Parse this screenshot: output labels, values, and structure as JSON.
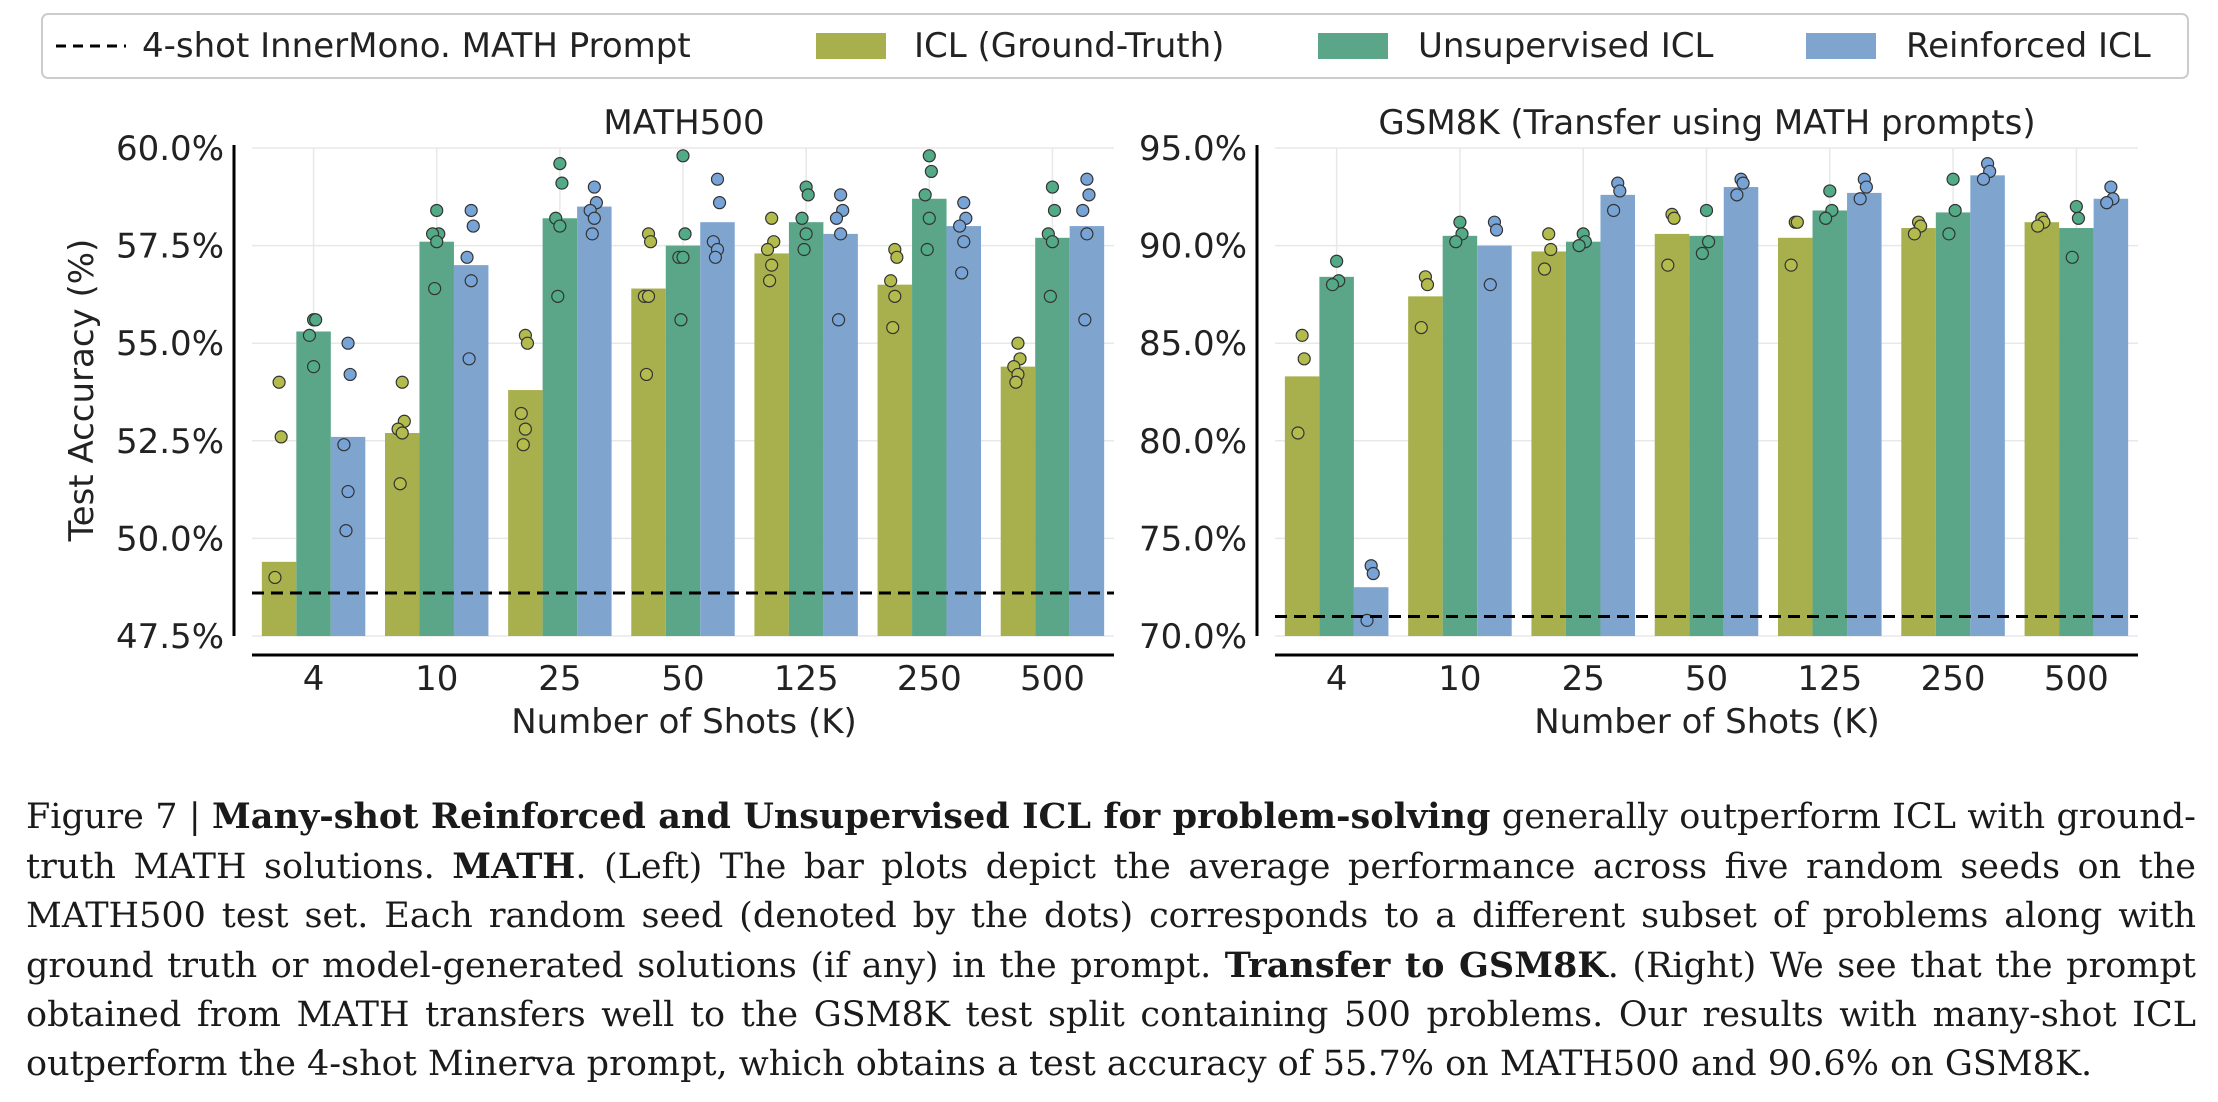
{
  "legend": {
    "items": [
      {
        "label": "4-shot InnerMono. MATH Prompt",
        "kind": "dashed",
        "color": "#000000"
      },
      {
        "label": "ICL (Ground-Truth)",
        "kind": "patch",
        "color": "#a8b04e"
      },
      {
        "label": "Unsupervised ICL",
        "kind": "patch",
        "color": "#5ba689"
      },
      {
        "label": "Reinforced ICL",
        "kind": "patch",
        "color": "#7fa5cf"
      }
    ]
  },
  "colors": {
    "icl": "#a8b04e",
    "icl_dot": "#b2bb4c",
    "unsup": "#5ba689",
    "unsup_dot": "#52aa86",
    "reinf": "#7fa5cf",
    "reinf_dot": "#78a3d6",
    "baseline": "#000000",
    "axis": "#000000",
    "grid": "#e8e8e8"
  },
  "chart_data": [
    {
      "type": "bar",
      "title": "MATH500",
      "xlabel": "Number of Shots (K)",
      "ylabel": "Test Accuracy (%)",
      "categories": [
        "4",
        "10",
        "25",
        "50",
        "125",
        "250",
        "500"
      ],
      "ylim": [
        47.5,
        60.0
      ],
      "yticks": [
        "47.5%",
        "50.0%",
        "52.5%",
        "55.0%",
        "57.5%",
        "60.0%"
      ],
      "ytick_values": [
        47.5,
        50.0,
        52.5,
        55.0,
        57.5,
        60.0
      ],
      "grid": true,
      "baseline": 48.6,
      "series": [
        {
          "name": "ICL (Ground-Truth)",
          "values": [
            49.4,
            52.7,
            53.8,
            56.4,
            57.3,
            56.5,
            54.4
          ],
          "seeds": [
            [
              54.0,
              52.6,
              49.0
            ],
            [
              54.0,
              53.0,
              52.8,
              52.7,
              51.4
            ],
            [
              55.2,
              55.0,
              53.2,
              52.8,
              52.4
            ],
            [
              57.8,
              57.6,
              56.2,
              56.2,
              54.2
            ],
            [
              58.2,
              57.6,
              57.4,
              57.0,
              56.6
            ],
            [
              57.4,
              57.2,
              56.6,
              56.2,
              55.4
            ],
            [
              55.0,
              54.6,
              54.4,
              54.2,
              54.0
            ]
          ]
        },
        {
          "name": "Unsupervised ICL",
          "values": [
            55.3,
            57.6,
            58.2,
            57.5,
            58.1,
            58.7,
            57.7
          ],
          "seeds": [
            [
              55.6,
              55.6,
              55.2,
              54.4
            ],
            [
              58.4,
              57.8,
              57.8,
              57.6,
              56.4
            ],
            [
              59.6,
              59.1,
              58.2,
              58.0,
              56.2
            ],
            [
              59.8,
              57.8,
              57.2,
              57.2,
              55.6
            ],
            [
              59.0,
              58.8,
              58.2,
              57.8,
              57.4
            ],
            [
              59.8,
              59.4,
              58.8,
              58.2,
              57.4
            ],
            [
              59.0,
              58.4,
              57.8,
              57.6,
              56.2
            ]
          ]
        },
        {
          "name": "Reinforced ICL",
          "values": [
            52.6,
            57.0,
            58.5,
            58.1,
            57.8,
            58.0,
            58.0
          ],
          "seeds": [
            [
              55.0,
              54.2,
              52.4,
              51.2,
              50.2
            ],
            [
              58.4,
              58.0,
              57.2,
              56.6,
              54.6
            ],
            [
              59.0,
              58.6,
              58.4,
              58.2,
              57.8
            ],
            [
              59.2,
              58.6,
              57.6,
              57.4,
              57.2
            ],
            [
              58.8,
              58.4,
              58.2,
              57.8,
              55.6
            ],
            [
              58.6,
              58.2,
              58.0,
              57.6,
              56.8
            ],
            [
              59.2,
              58.8,
              58.4,
              57.8,
              55.6
            ]
          ]
        }
      ]
    },
    {
      "type": "bar",
      "title": "GSM8K (Transfer using MATH prompts)",
      "xlabel": "Number of Shots (K)",
      "ylabel": "",
      "categories": [
        "4",
        "10",
        "25",
        "50",
        "125",
        "250",
        "500"
      ],
      "ylim": [
        70.0,
        95.0
      ],
      "yticks": [
        "70.0%",
        "75.0%",
        "80.0%",
        "85.0%",
        "90.0%",
        "95.0%"
      ],
      "ytick_values": [
        70.0,
        75.0,
        80.0,
        85.0,
        90.0,
        95.0
      ],
      "grid": true,
      "baseline": 71.0,
      "series": [
        {
          "name": "ICL (Ground-Truth)",
          "values": [
            83.3,
            87.4,
            89.7,
            90.6,
            90.4,
            90.9,
            91.2
          ],
          "seeds": [
            [
              85.4,
              84.2,
              80.4
            ],
            [
              88.4,
              88.0,
              85.8
            ],
            [
              90.6,
              89.8,
              88.8
            ],
            [
              91.6,
              91.4,
              89.0
            ],
            [
              91.2,
              91.2,
              89.0
            ],
            [
              91.2,
              91.0,
              90.6
            ],
            [
              91.4,
              91.2,
              91.0
            ]
          ]
        },
        {
          "name": "Unsupervised ICL",
          "values": [
            88.4,
            90.5,
            90.2,
            90.5,
            91.8,
            91.7,
            90.9
          ],
          "seeds": [
            [
              89.2,
              88.2,
              88.0
            ],
            [
              91.2,
              90.6,
              90.2
            ],
            [
              90.6,
              90.2,
              90.0
            ],
            [
              91.8,
              90.2,
              89.6
            ],
            [
              92.8,
              91.8,
              91.4
            ],
            [
              93.4,
              91.8,
              90.6
            ],
            [
              92.0,
              91.4,
              89.4
            ]
          ]
        },
        {
          "name": "Reinforced ICL",
          "values": [
            72.5,
            90.0,
            92.6,
            93.0,
            92.7,
            93.6,
            92.4
          ],
          "seeds": [
            [
              73.6,
              73.2,
              70.8
            ],
            [
              91.2,
              90.8,
              88.0
            ],
            [
              93.2,
              92.8,
              91.8
            ],
            [
              93.4,
              93.2,
              92.6
            ],
            [
              93.4,
              93.0,
              92.4
            ],
            [
              94.2,
              93.8,
              93.4
            ],
            [
              93.0,
              92.4,
              92.2
            ]
          ]
        }
      ]
    }
  ],
  "caption": {
    "figure_label": "Figure 7 | ",
    "bold_title": "Many-shot Reinforced and Unsupervised ICL for problem-solving",
    "text1": " generally outperform ICL with ground-truth MATH solutions. ",
    "bold_math": "MATH",
    "text2": ". (Left) The bar plots depict the average performance across five random seeds on the MATH500 test set. Each random seed (denoted by the dots) corresponds to a different subset of problems along with ground truth or model-generated solutions (if any) in the prompt. ",
    "bold_transfer": "Transfer to GSM8K",
    "text3": ". (Right) We see that the prompt obtained from MATH transfers well to the GSM8K test split containing 500 problems. Our results with many-shot ICL outperform the 4-shot Minerva prompt, which obtains a test accuracy of 55.7% on MATH500 and 90.6% on GSM8K."
  }
}
